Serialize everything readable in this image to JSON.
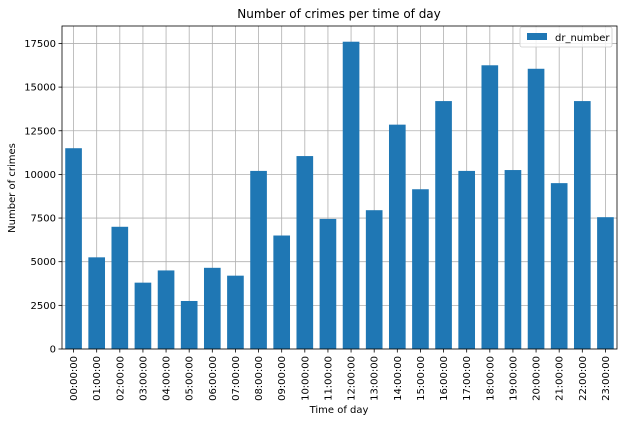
{
  "chart_data": {
    "type": "bar",
    "title": "Number of crimes per time of day",
    "xlabel": "Time of day",
    "ylabel": "Number of crimes",
    "categories": [
      "00:00:00",
      "01:00:00",
      "02:00:00",
      "03:00:00",
      "04:00:00",
      "05:00:00",
      "06:00:00",
      "07:00:00",
      "08:00:00",
      "09:00:00",
      "10:00:00",
      "11:00:00",
      "12:00:00",
      "13:00:00",
      "14:00:00",
      "15:00:00",
      "16:00:00",
      "17:00:00",
      "18:00:00",
      "19:00:00",
      "20:00:00",
      "21:00:00",
      "22:00:00",
      "23:00:00"
    ],
    "series": [
      {
        "name": "dr_number",
        "values": [
          11500,
          5250,
          7000,
          3800,
          4500,
          2750,
          4650,
          4200,
          10200,
          6500,
          11050,
          7450,
          17600,
          7950,
          12850,
          9150,
          14200,
          10200,
          16250,
          10250,
          16050,
          9500,
          14200,
          7550
        ],
        "color": "#1f77b4"
      }
    ],
    "ylim": [
      0,
      18500
    ],
    "yticks": [
      "0",
      "2500",
      "5000",
      "7500",
      "10000",
      "12500",
      "15000",
      "17500"
    ],
    "grid": true,
    "legend": "top-right"
  }
}
